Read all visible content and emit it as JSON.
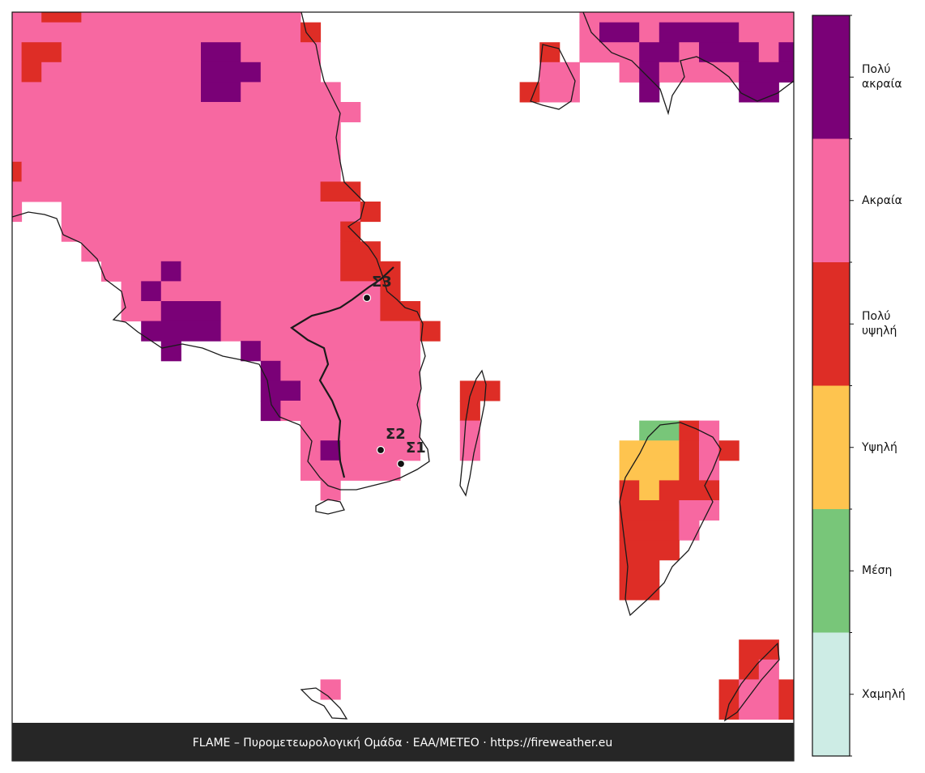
{
  "legend": {
    "levels": [
      {
        "label": "Χαμηλή",
        "color": "#cdece5"
      },
      {
        "label": "Μέση",
        "color": "#78c679"
      },
      {
        "label": "Υψηλή",
        "color": "#fec44f"
      },
      {
        "label": "Πολύ υψηλή",
        "color": "#de2d26"
      },
      {
        "label": "Ακραία",
        "color": "#f768a1"
      },
      {
        "label": "Πολύ ακραία",
        "color": "#7a0177"
      }
    ]
  },
  "stations": [
    {
      "label": "Σ3"
    },
    {
      "label": "Σ2"
    },
    {
      "label": "Σ1"
    }
  ],
  "footer": "FLAME – Πυρομετεωρολογική Ομάδα · ΕΑΑ/METEO · https://fireweather.eu"
}
